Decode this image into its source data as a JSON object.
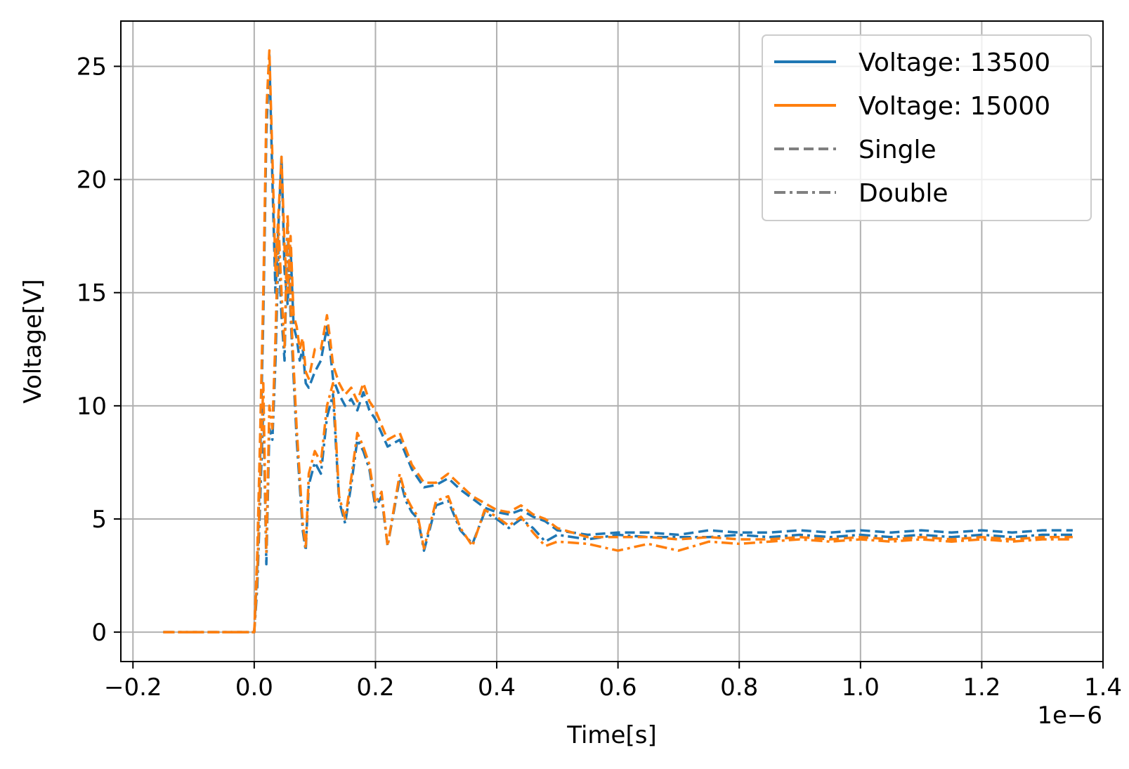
{
  "chart_data": {
    "type": "line",
    "title": "",
    "xlabel": "Time[s]",
    "ylabel": "Voltage[V]",
    "x_offset_label": "1e−6",
    "xlim": [
      -0.22,
      1.4
    ],
    "ylim": [
      -1.3,
      27
    ],
    "x_ticks": [
      -0.2,
      0.0,
      0.2,
      0.4,
      0.6,
      0.8,
      1.0,
      1.2,
      1.4
    ],
    "x_tick_labels": [
      "−0.2",
      "0.0",
      "0.2",
      "0.4",
      "0.6",
      "0.8",
      "1.0",
      "1.2",
      "1.4"
    ],
    "y_ticks": [
      0,
      5,
      10,
      15,
      20,
      25
    ],
    "y_tick_labels": [
      "0",
      "5",
      "10",
      "15",
      "20",
      "25"
    ],
    "grid": true,
    "legend_position": "top-right",
    "legend": [
      {
        "label": "Voltage: 13500",
        "color": "#1f77b4",
        "style": "solid"
      },
      {
        "label": "Voltage: 15000",
        "color": "#ff7f0e",
        "style": "solid"
      },
      {
        "label": "Single",
        "color": "#808080",
        "style": "dashed"
      },
      {
        "label": "Double",
        "color": "#808080",
        "style": "dashdot"
      }
    ],
    "series": [
      {
        "voltage": 13500,
        "mode": "Single",
        "color": "#1f77b4",
        "style": "dashed",
        "x": [
          -0.15,
          -0.1,
          -0.05,
          0.0,
          0.005,
          0.01,
          0.015,
          0.02,
          0.025,
          0.03,
          0.035,
          0.04,
          0.045,
          0.05,
          0.055,
          0.06,
          0.065,
          0.07,
          0.075,
          0.08,
          0.085,
          0.09,
          0.1,
          0.11,
          0.12,
          0.125,
          0.13,
          0.14,
          0.15,
          0.16,
          0.17,
          0.18,
          0.19,
          0.2,
          0.22,
          0.24,
          0.26,
          0.28,
          0.3,
          0.32,
          0.34,
          0.36,
          0.38,
          0.4,
          0.42,
          0.44,
          0.46,
          0.48,
          0.5,
          0.55,
          0.6,
          0.65,
          0.7,
          0.75,
          0.8,
          0.85,
          0.9,
          0.95,
          1.0,
          1.05,
          1.1,
          1.15,
          1.2,
          1.25,
          1.3,
          1.35
        ],
        "y": [
          0.0,
          0.0,
          0.0,
          0.0,
          3.0,
          8.0,
          14.0,
          22.0,
          25.5,
          20.0,
          15.0,
          18.0,
          21.0,
          16.0,
          14.5,
          17.0,
          13.5,
          13.0,
          12.0,
          12.5,
          11.0,
          10.8,
          11.5,
          12.0,
          13.5,
          12.5,
          11.2,
          10.5,
          10.0,
          10.3,
          9.8,
          10.6,
          9.8,
          9.4,
          8.2,
          8.5,
          7.2,
          6.4,
          6.5,
          6.8,
          6.3,
          5.9,
          5.5,
          5.3,
          5.2,
          5.4,
          5.1,
          4.9,
          4.5,
          4.3,
          4.4,
          4.4,
          4.3,
          4.5,
          4.4,
          4.4,
          4.5,
          4.4,
          4.5,
          4.4,
          4.5,
          4.4,
          4.5,
          4.4,
          4.5,
          4.5
        ]
      },
      {
        "voltage": 13500,
        "mode": "Double",
        "color": "#1f77b4",
        "style": "dashdot",
        "x": [
          -0.15,
          -0.1,
          -0.05,
          0.0,
          0.005,
          0.01,
          0.015,
          0.02,
          0.025,
          0.03,
          0.035,
          0.04,
          0.045,
          0.05,
          0.055,
          0.06,
          0.07,
          0.08,
          0.085,
          0.09,
          0.1,
          0.11,
          0.12,
          0.13,
          0.14,
          0.15,
          0.16,
          0.17,
          0.18,
          0.19,
          0.2,
          0.21,
          0.22,
          0.24,
          0.25,
          0.26,
          0.27,
          0.28,
          0.3,
          0.32,
          0.34,
          0.36,
          0.38,
          0.4,
          0.42,
          0.44,
          0.46,
          0.48,
          0.5,
          0.55,
          0.6,
          0.65,
          0.7,
          0.75,
          0.8,
          0.85,
          0.9,
          0.95,
          1.0,
          1.05,
          1.1,
          1.15,
          1.2,
          1.25,
          1.3,
          1.35
        ],
        "y": [
          0.0,
          0.0,
          0.0,
          0.0,
          2.0,
          6.0,
          10.0,
          3.0,
          9.0,
          8.5,
          12.0,
          17.0,
          14.0,
          12.0,
          18.0,
          14.0,
          8.5,
          4.5,
          3.6,
          6.5,
          7.5,
          7.0,
          9.5,
          10.5,
          5.8,
          4.8,
          6.5,
          8.5,
          8.0,
          7.2,
          5.5,
          6.0,
          3.8,
          6.8,
          5.8,
          5.3,
          5.0,
          3.6,
          5.6,
          5.8,
          4.5,
          3.9,
          5.3,
          5.0,
          4.6,
          5.0,
          4.6,
          4.0,
          4.3,
          4.1,
          4.3,
          4.2,
          4.2,
          4.2,
          4.3,
          4.2,
          4.3,
          4.2,
          4.3,
          4.2,
          4.3,
          4.2,
          4.3,
          4.2,
          4.3,
          4.3
        ]
      },
      {
        "voltage": 15000,
        "mode": "Single",
        "color": "#ff7f0e",
        "style": "dashed",
        "x": [
          -0.15,
          -0.1,
          -0.05,
          0.0,
          0.005,
          0.01,
          0.015,
          0.02,
          0.025,
          0.03,
          0.035,
          0.04,
          0.045,
          0.05,
          0.055,
          0.06,
          0.065,
          0.07,
          0.075,
          0.08,
          0.085,
          0.09,
          0.1,
          0.11,
          0.12,
          0.125,
          0.13,
          0.14,
          0.15,
          0.16,
          0.17,
          0.18,
          0.19,
          0.2,
          0.22,
          0.24,
          0.26,
          0.28,
          0.3,
          0.32,
          0.34,
          0.36,
          0.38,
          0.4,
          0.42,
          0.44,
          0.46,
          0.48,
          0.5,
          0.55,
          0.6,
          0.65,
          0.7,
          0.75,
          0.8,
          0.85,
          0.9,
          0.95,
          1.0,
          1.05,
          1.1,
          1.15,
          1.2,
          1.25,
          1.3,
          1.35
        ],
        "y": [
          0.0,
          0.0,
          0.0,
          0.0,
          3.5,
          9.0,
          15.0,
          23.0,
          25.7,
          21.0,
          16.0,
          18.5,
          21.0,
          17.0,
          15.0,
          17.5,
          14.0,
          13.5,
          12.5,
          13.0,
          11.5,
          11.2,
          12.5,
          12.5,
          14.0,
          13.0,
          11.8,
          11.0,
          10.5,
          10.8,
          10.2,
          11.0,
          10.2,
          9.8,
          8.5,
          8.8,
          7.4,
          6.6,
          6.6,
          7.0,
          6.5,
          6.0,
          5.7,
          5.4,
          5.3,
          5.6,
          5.2,
          5.0,
          4.6,
          4.2,
          4.2,
          4.2,
          4.1,
          4.2,
          4.1,
          4.1,
          4.2,
          4.1,
          4.2,
          4.1,
          4.2,
          4.1,
          4.2,
          4.1,
          4.2,
          4.2
        ]
      },
      {
        "voltage": 15000,
        "mode": "Double",
        "color": "#ff7f0e",
        "style": "dashdot",
        "x": [
          -0.15,
          -0.1,
          -0.05,
          0.0,
          0.005,
          0.01,
          0.015,
          0.02,
          0.025,
          0.03,
          0.035,
          0.04,
          0.045,
          0.05,
          0.055,
          0.06,
          0.07,
          0.08,
          0.085,
          0.09,
          0.1,
          0.11,
          0.12,
          0.13,
          0.14,
          0.15,
          0.16,
          0.17,
          0.18,
          0.19,
          0.2,
          0.21,
          0.22,
          0.24,
          0.25,
          0.26,
          0.27,
          0.28,
          0.3,
          0.32,
          0.34,
          0.36,
          0.38,
          0.4,
          0.42,
          0.44,
          0.46,
          0.48,
          0.5,
          0.55,
          0.6,
          0.65,
          0.7,
          0.75,
          0.8,
          0.85,
          0.9,
          0.95,
          1.0,
          1.05,
          1.1,
          1.15,
          1.2,
          1.25,
          1.3,
          1.35
        ],
        "y": [
          0.0,
          0.0,
          0.0,
          0.0,
          2.5,
          7.0,
          11.0,
          3.5,
          10.0,
          9.0,
          13.0,
          18.0,
          15.0,
          12.5,
          18.5,
          14.5,
          9.0,
          4.8,
          3.7,
          7.0,
          8.0,
          7.5,
          10.0,
          11.0,
          6.0,
          5.0,
          6.8,
          8.8,
          8.2,
          7.4,
          5.7,
          6.2,
          3.8,
          7.0,
          6.0,
          5.5,
          5.1,
          3.7,
          5.8,
          6.0,
          4.6,
          3.8,
          5.4,
          5.1,
          4.7,
          5.1,
          4.4,
          3.8,
          4.0,
          3.9,
          3.6,
          3.9,
          3.6,
          4.0,
          3.9,
          4.0,
          4.1,
          4.0,
          4.1,
          4.0,
          4.1,
          4.0,
          4.1,
          4.0,
          4.1,
          4.1
        ]
      }
    ]
  }
}
